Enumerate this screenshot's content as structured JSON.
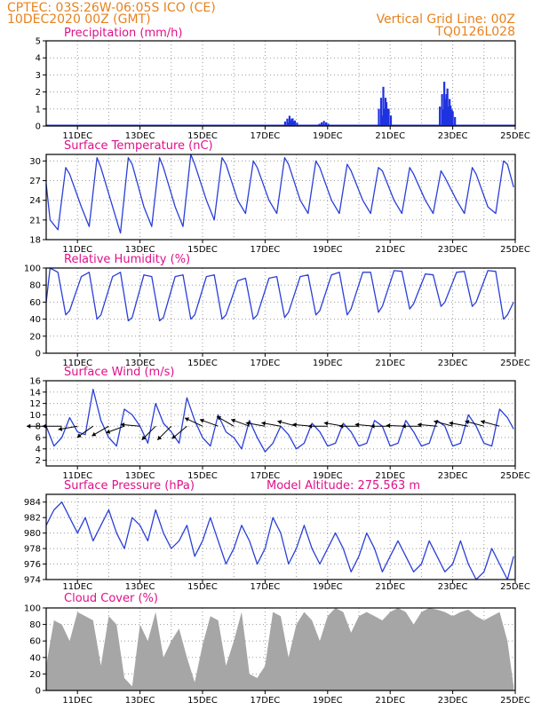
{
  "header": {
    "line1_left": "CPTEC:   03S:26W-06:05S   ICO (CE)",
    "line2_left": "10DEC2020 00Z (GMT)",
    "line1_right": "Vertical Grid Line: 00Z",
    "line2_right": "TQ0126L028"
  },
  "extra_label": "Model Altitude: 275.563 m",
  "x_ticks": [
    "11DEC",
    "13DEC",
    "15DEC",
    "17DEC",
    "19DEC",
    "21DEC",
    "23DEC",
    "25DEC"
  ],
  "colors": {
    "line": "#2a3fd8",
    "bar": "#1f32e0",
    "cloud": "#a6a6a6",
    "title": "#e0108a",
    "header": "#e8821e"
  },
  "chart_data": [
    {
      "type": "bar",
      "title": "Precipitation (mm/h)",
      "ylim": [
        0,
        5
      ],
      "yticks": [
        0,
        1,
        2,
        3,
        4,
        5
      ],
      "x_range_days": [
        10,
        25
      ],
      "events": [
        {
          "day": 17.75,
          "value": 0.6
        },
        {
          "day": 17.85,
          "value": 0.45
        },
        {
          "day": 18.85,
          "value": 0.3
        },
        {
          "day": 20.75,
          "value": 2.3
        },
        {
          "day": 20.85,
          "value": 1.4
        },
        {
          "day": 22.7,
          "value": 2.6
        },
        {
          "day": 22.8,
          "value": 2.2
        },
        {
          "day": 22.9,
          "value": 1.2
        }
      ]
    },
    {
      "type": "line",
      "title": "Surface Temperature (nC)",
      "ylim": [
        18,
        31
      ],
      "yticks": [
        18,
        21,
        24,
        27,
        30
      ],
      "x": [
        10,
        10.125,
        10.375,
        10.625,
        10.75,
        11.125,
        11.375,
        11.625,
        11.75,
        12.125,
        12.375,
        12.625,
        12.75,
        13.125,
        13.375,
        13.625,
        13.75,
        14.125,
        14.375,
        14.625,
        14.75,
        15.125,
        15.375,
        15.625,
        15.75,
        16.125,
        16.375,
        16.625,
        16.75,
        17.125,
        17.375,
        17.625,
        17.75,
        18.125,
        18.375,
        18.625,
        18.75,
        19.125,
        19.375,
        19.625,
        19.75,
        20.125,
        20.375,
        20.625,
        20.75,
        21.125,
        21.375,
        21.625,
        21.75,
        22.125,
        22.375,
        22.625,
        22.75,
        23.125,
        23.375,
        23.625,
        23.75,
        24.125,
        24.375,
        24.625,
        24.75,
        24.95
      ],
      "values": [
        26.5,
        21,
        19.5,
        29,
        28,
        23,
        20,
        30.5,
        29,
        23,
        19,
        30.5,
        29.5,
        23,
        20,
        30.5,
        29,
        23,
        20,
        31,
        29.5,
        24,
        21,
        30.5,
        29.5,
        24,
        22,
        30,
        29,
        24,
        22,
        30.5,
        29.5,
        24,
        22,
        30,
        29,
        24,
        22,
        29.5,
        28.5,
        24,
        22,
        29,
        28.5,
        24,
        22,
        29,
        28,
        24,
        22,
        28.5,
        27.5,
        24,
        22,
        29,
        28,
        23,
        22,
        30,
        29.5,
        26
      ]
    },
    {
      "type": "line",
      "title": "Relative Humidity (%)",
      "ylim": [
        0,
        100
      ],
      "yticks": [
        0,
        20,
        40,
        60,
        80,
        100
      ],
      "x": [
        10,
        10.125,
        10.375,
        10.625,
        10.75,
        11.125,
        11.375,
        11.625,
        11.75,
        12.125,
        12.375,
        12.625,
        12.75,
        13.125,
        13.375,
        13.625,
        13.75,
        14.125,
        14.375,
        14.625,
        14.75,
        15.125,
        15.375,
        15.625,
        15.75,
        16.125,
        16.375,
        16.625,
        16.75,
        17.125,
        17.375,
        17.625,
        17.75,
        18.125,
        18.375,
        18.625,
        18.75,
        19.125,
        19.375,
        19.625,
        19.75,
        20.125,
        20.375,
        20.625,
        20.75,
        21.125,
        21.375,
        21.625,
        21.75,
        22.125,
        22.375,
        22.625,
        22.75,
        23.125,
        23.375,
        23.625,
        23.75,
        24.125,
        24.375,
        24.625,
        24.75,
        24.95
      ],
      "values": [
        60,
        100,
        95,
        45,
        50,
        90,
        95,
        40,
        45,
        90,
        95,
        38,
        42,
        92,
        90,
        38,
        42,
        90,
        92,
        40,
        45,
        90,
        92,
        40,
        45,
        85,
        88,
        40,
        45,
        88,
        90,
        42,
        48,
        90,
        92,
        45,
        50,
        92,
        95,
        45,
        52,
        95,
        95,
        48,
        55,
        97,
        96,
        52,
        58,
        93,
        92,
        55,
        60,
        95,
        96,
        55,
        60,
        97,
        96,
        40,
        45,
        60
      ]
    },
    {
      "type": "line",
      "title": "Surface Wind (m/s)",
      "ylim": [
        1,
        16
      ],
      "yticks": [
        2,
        4,
        6,
        8,
        10,
        12,
        14,
        16
      ],
      "x": [
        10,
        10.25,
        10.5,
        10.75,
        11,
        11.25,
        11.5,
        11.75,
        12,
        12.25,
        12.5,
        12.75,
        13,
        13.25,
        13.5,
        13.75,
        14,
        14.25,
        14.5,
        14.75,
        15,
        15.25,
        15.5,
        15.75,
        16,
        16.25,
        16.5,
        16.75,
        17,
        17.25,
        17.5,
        17.75,
        18,
        18.25,
        18.5,
        18.75,
        19,
        19.25,
        19.5,
        19.75,
        20,
        20.25,
        20.5,
        20.75,
        21,
        21.25,
        21.5,
        21.75,
        22,
        22.25,
        22.5,
        22.75,
        23,
        23.25,
        23.5,
        23.75,
        24,
        24.25,
        24.5,
        24.75,
        24.95
      ],
      "values": [
        8,
        4.5,
        6,
        9.5,
        7,
        6.5,
        14.5,
        9,
        6,
        4.5,
        11,
        10,
        8,
        5,
        12,
        8.5,
        7,
        5,
        13,
        9,
        6,
        4.5,
        10,
        7,
        6,
        4,
        9,
        6,
        3.5,
        5,
        8,
        6.5,
        4,
        5,
        8.5,
        7,
        4.5,
        5,
        8.5,
        7,
        4.5,
        5,
        9,
        8,
        4.5,
        5,
        9,
        7,
        4.5,
        5,
        9,
        8,
        4.5,
        5,
        10,
        8,
        5,
        4.5,
        11,
        9.5,
        7.5
      ],
      "arrows": [
        {
          "x": 10,
          "angle": 180
        },
        {
          "x": 10.5,
          "angle": 180
        },
        {
          "x": 11,
          "angle": 190
        },
        {
          "x": 11.5,
          "angle": 215
        },
        {
          "x": 12,
          "angle": 210
        },
        {
          "x": 12.5,
          "angle": 200
        },
        {
          "x": 13,
          "angle": 175
        },
        {
          "x": 13.5,
          "angle": 225
        },
        {
          "x": 14,
          "angle": 225
        },
        {
          "x": 14.5,
          "angle": 220
        },
        {
          "x": 15,
          "angle": 155
        },
        {
          "x": 15.5,
          "angle": 160
        },
        {
          "x": 16,
          "angle": 150
        },
        {
          "x": 16.5,
          "angle": 160
        },
        {
          "x": 17,
          "angle": 170
        },
        {
          "x": 17.5,
          "angle": 170
        },
        {
          "x": 18,
          "angle": 165
        },
        {
          "x": 18.5,
          "angle": 175
        },
        {
          "x": 19,
          "angle": 180
        },
        {
          "x": 19.5,
          "angle": 170
        },
        {
          "x": 20,
          "angle": 180
        },
        {
          "x": 20.5,
          "angle": 175
        },
        {
          "x": 21,
          "angle": 180
        },
        {
          "x": 21.5,
          "angle": 178
        },
        {
          "x": 22,
          "angle": 180
        },
        {
          "x": 22.5,
          "angle": 175
        },
        {
          "x": 23,
          "angle": 165
        },
        {
          "x": 23.5,
          "angle": 170
        },
        {
          "x": 24,
          "angle": 165
        },
        {
          "x": 24.5,
          "angle": 165
        }
      ]
    },
    {
      "type": "line",
      "title": "Surface Pressure (hPa)",
      "ylim": [
        974,
        985
      ],
      "yticks": [
        974,
        976,
        978,
        980,
        982,
        984
      ],
      "x": [
        10,
        10.25,
        10.5,
        10.75,
        11,
        11.25,
        11.5,
        11.75,
        12,
        12.25,
        12.5,
        12.75,
        13,
        13.25,
        13.5,
        13.75,
        14,
        14.25,
        14.5,
        14.75,
        15,
        15.25,
        15.5,
        15.75,
        16,
        16.25,
        16.5,
        16.75,
        17,
        17.25,
        17.5,
        17.75,
        18,
        18.25,
        18.5,
        18.75,
        19,
        19.25,
        19.5,
        19.75,
        20,
        20.25,
        20.5,
        20.75,
        21,
        21.25,
        21.5,
        21.75,
        22,
        22.25,
        22.5,
        22.75,
        23,
        23.25,
        23.5,
        23.75,
        24,
        24.25,
        24.5,
        24.75,
        24.95
      ],
      "values": [
        981,
        983,
        984,
        982,
        980,
        982,
        979,
        981,
        983,
        980,
        978,
        982,
        981,
        979,
        983,
        980,
        978,
        979,
        981,
        977,
        979,
        982,
        979,
        976,
        978,
        981,
        979,
        976,
        978,
        982,
        980,
        976,
        978,
        981,
        978,
        976,
        978,
        980,
        978,
        975,
        977,
        980,
        978,
        975,
        977,
        979,
        977,
        975,
        976,
        979,
        977,
        975,
        976,
        979,
        976,
        974,
        975,
        978,
        976,
        974,
        977
      ]
    },
    {
      "type": "area",
      "title": "Cloud Cover (%)",
      "ylim": [
        0,
        100
      ],
      "yticks": [
        0,
        20,
        40,
        60,
        80,
        100
      ],
      "x": [
        10,
        10.25,
        10.5,
        10.75,
        11,
        11.25,
        11.5,
        11.75,
        12,
        12.25,
        12.5,
        12.75,
        13,
        13.25,
        13.5,
        13.75,
        14,
        14.25,
        14.5,
        14.75,
        15,
        15.25,
        15.5,
        15.75,
        16,
        16.25,
        16.5,
        16.75,
        17,
        17.25,
        17.5,
        17.75,
        18,
        18.25,
        18.5,
        18.75,
        19,
        19.25,
        19.5,
        19.75,
        20,
        20.25,
        20.5,
        20.75,
        21,
        21.25,
        21.5,
        21.75,
        22,
        22.25,
        22.5,
        22.75,
        23,
        23.25,
        23.5,
        23.75,
        24,
        24.25,
        24.5,
        24.75,
        24.95
      ],
      "values": [
        30,
        85,
        80,
        60,
        95,
        90,
        85,
        30,
        90,
        80,
        15,
        5,
        80,
        60,
        95,
        40,
        60,
        75,
        40,
        10,
        55,
        90,
        85,
        30,
        60,
        95,
        20,
        15,
        30,
        95,
        90,
        40,
        80,
        95,
        85,
        60,
        90,
        100,
        95,
        70,
        90,
        95,
        90,
        85,
        95,
        100,
        95,
        80,
        95,
        100,
        98,
        95,
        90,
        95,
        98,
        90,
        85,
        90,
        95,
        60,
        5
      ]
    }
  ]
}
